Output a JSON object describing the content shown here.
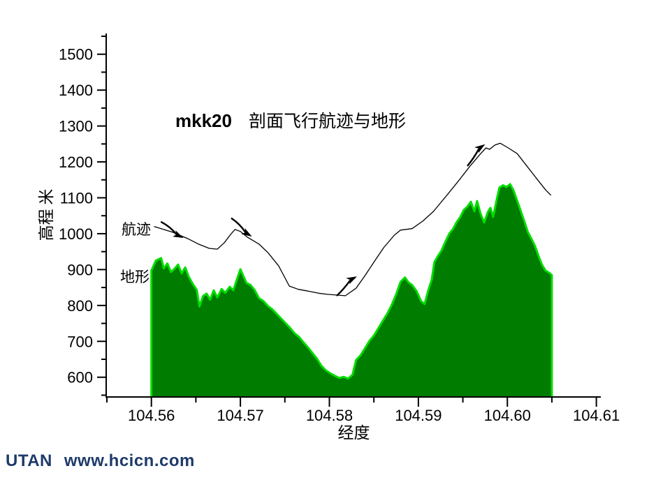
{
  "figure": {
    "title": {
      "prefix": "mkk20",
      "main": "剖面飞行航迹与地形"
    },
    "series_labels": {
      "path": "航迹",
      "terrain": "地形"
    },
    "x_axis": {
      "label": "经度",
      "min": 104.555,
      "max": 104.6105,
      "majors": [
        104.56,
        104.57,
        104.58,
        104.59,
        104.6,
        104.61
      ],
      "minor_step": 0.005,
      "decimals": 2
    },
    "y_axis": {
      "label": "高程 米",
      "min": 545,
      "max": 1550,
      "majors": [
        600,
        700,
        800,
        900,
        1000,
        1100,
        1200,
        1300,
        1400,
        1500
      ],
      "minor_step": 50
    },
    "colors": {
      "terrain_fill": "#007c00",
      "terrain_edge": "#00dd00",
      "path_line": "#000000",
      "axis": "#000000",
      "footer_text": "#1e3a6a"
    }
  },
  "chart_data": {
    "type": "area",
    "title": "mkk20 剖面飞行航迹与地形",
    "xlabel": "经度",
    "ylabel": "高程 米",
    "xlim": [
      104.555,
      104.6105
    ],
    "ylim": [
      545,
      1550
    ],
    "grid": false,
    "series": [
      {
        "name": "地形",
        "type": "area",
        "points": [
          [
            104.56,
            897
          ],
          [
            104.5605,
            925
          ],
          [
            104.5611,
            932
          ],
          [
            104.5614,
            903
          ],
          [
            104.5618,
            917
          ],
          [
            104.5622,
            893
          ],
          [
            104.5626,
            902
          ],
          [
            104.563,
            914
          ],
          [
            104.5634,
            889
          ],
          [
            104.5638,
            906
          ],
          [
            104.5642,
            880
          ],
          [
            104.5646,
            862
          ],
          [
            104.5651,
            843
          ],
          [
            104.5654,
            797
          ],
          [
            104.5658,
            826
          ],
          [
            104.5662,
            833
          ],
          [
            104.5666,
            816
          ],
          [
            104.567,
            842
          ],
          [
            104.5674,
            822
          ],
          [
            104.5679,
            846
          ],
          [
            104.5683,
            835
          ],
          [
            104.5688,
            852
          ],
          [
            104.5692,
            842
          ],
          [
            104.5696,
            872
          ],
          [
            104.57,
            901
          ],
          [
            104.5703,
            884
          ],
          [
            104.5707,
            862
          ],
          [
            104.5711,
            858
          ],
          [
            104.5716,
            843
          ],
          [
            104.5721,
            820
          ],
          [
            104.5726,
            812
          ],
          [
            104.5731,
            798
          ],
          [
            104.5736,
            789
          ],
          [
            104.5741,
            776
          ],
          [
            104.5746,
            763
          ],
          [
            104.5751,
            750
          ],
          [
            104.5756,
            737
          ],
          [
            104.5761,
            722
          ],
          [
            104.5766,
            712
          ],
          [
            104.5771,
            697
          ],
          [
            104.5776,
            683
          ],
          [
            104.5781,
            667
          ],
          [
            104.5786,
            652
          ],
          [
            104.5791,
            632
          ],
          [
            104.5796,
            619
          ],
          [
            104.5801,
            611
          ],
          [
            104.5806,
            604
          ],
          [
            104.5811,
            598
          ],
          [
            104.5816,
            601
          ],
          [
            104.5821,
            596
          ],
          [
            104.5826,
            607
          ],
          [
            104.583,
            648
          ],
          [
            104.5835,
            661
          ],
          [
            104.584,
            681
          ],
          [
            104.5845,
            701
          ],
          [
            104.585,
            716
          ],
          [
            104.5855,
            736
          ],
          [
            104.586,
            757
          ],
          [
            104.5865,
            777
          ],
          [
            104.587,
            801
          ],
          [
            104.5875,
            831
          ],
          [
            104.588,
            866
          ],
          [
            104.5885,
            878
          ],
          [
            104.5889,
            864
          ],
          [
            104.5893,
            857
          ],
          [
            104.5898,
            840
          ],
          [
            104.5903,
            812
          ],
          [
            104.5907,
            804
          ],
          [
            104.5911,
            841
          ],
          [
            104.5915,
            872
          ],
          [
            104.5918,
            921
          ],
          [
            104.5922,
            938
          ],
          [
            104.5926,
            953
          ],
          [
            104.593,
            976
          ],
          [
            104.5935,
            1001
          ],
          [
            104.5939,
            1013
          ],
          [
            104.5943,
            1032
          ],
          [
            104.5947,
            1046
          ],
          [
            104.5951,
            1066
          ],
          [
            104.5955,
            1075
          ],
          [
            104.5959,
            1089
          ],
          [
            104.5963,
            1062
          ],
          [
            104.5966,
            1091
          ],
          [
            104.597,
            1055
          ],
          [
            104.5974,
            1031
          ],
          [
            104.5978,
            1060
          ],
          [
            104.5981,
            1072
          ],
          [
            104.5984,
            1047
          ],
          [
            104.5988,
            1095
          ],
          [
            104.5991,
            1128
          ],
          [
            104.5995,
            1135
          ],
          [
            104.5999,
            1130
          ],
          [
            104.6003,
            1138
          ],
          [
            104.6007,
            1120
          ],
          [
            104.6011,
            1092
          ],
          [
            104.6015,
            1063
          ],
          [
            104.6019,
            1035
          ],
          [
            104.6023,
            1005
          ],
          [
            104.6027,
            986
          ],
          [
            104.6031,
            966
          ],
          [
            104.6035,
            938
          ],
          [
            104.6039,
            913
          ],
          [
            104.6043,
            897
          ],
          [
            104.6047,
            891
          ],
          [
            104.605,
            885
          ]
        ]
      },
      {
        "name": "航迹",
        "type": "line",
        "points": [
          [
            104.5603,
            1020
          ],
          [
            104.5624,
            1004
          ],
          [
            104.5641,
            986
          ],
          [
            104.5653,
            971
          ],
          [
            104.5665,
            959
          ],
          [
            104.5674,
            957
          ],
          [
            104.5682,
            975
          ],
          [
            104.5689,
            998
          ],
          [
            104.5694,
            1012
          ],
          [
            104.57,
            1006
          ],
          [
            104.5708,
            990
          ],
          [
            104.5721,
            971
          ],
          [
            104.5731,
            947
          ],
          [
            104.5743,
            910
          ],
          [
            104.5755,
            854
          ],
          [
            104.5765,
            845
          ],
          [
            104.5776,
            840
          ],
          [
            104.5788,
            834
          ],
          [
            104.5798,
            831
          ],
          [
            104.5818,
            827
          ],
          [
            104.583,
            848
          ],
          [
            104.584,
            883
          ],
          [
            104.5852,
            928
          ],
          [
            104.5861,
            961
          ],
          [
            104.5873,
            996
          ],
          [
            104.588,
            1010
          ],
          [
            104.5893,
            1014
          ],
          [
            104.5905,
            1035
          ],
          [
            104.5917,
            1062
          ],
          [
            104.5932,
            1107
          ],
          [
            104.5946,
            1150
          ],
          [
            104.5958,
            1188
          ],
          [
            104.597,
            1223
          ],
          [
            104.5976,
            1239
          ],
          [
            104.598,
            1235
          ],
          [
            104.5986,
            1247
          ],
          [
            104.5992,
            1252
          ],
          [
            104.6001,
            1239
          ],
          [
            104.6011,
            1223
          ],
          [
            104.6022,
            1188
          ],
          [
            104.6034,
            1150
          ],
          [
            104.6043,
            1122
          ],
          [
            104.6049,
            1107
          ]
        ]
      }
    ],
    "arrows": [
      {
        "lon": 104.5636,
        "alt": 988,
        "angle": 24,
        "curve": "down"
      },
      {
        "lon": 104.5713,
        "alt": 992,
        "angle": 30,
        "curve": "down"
      },
      {
        "lon": 104.5831,
        "alt": 881,
        "angle": -29,
        "curve": "up"
      },
      {
        "lon": 104.5975,
        "alt": 1249,
        "angle": -36,
        "curve": "up"
      }
    ]
  },
  "footer": {
    "brand": "UTAN",
    "url": "www.hcicn.com"
  }
}
